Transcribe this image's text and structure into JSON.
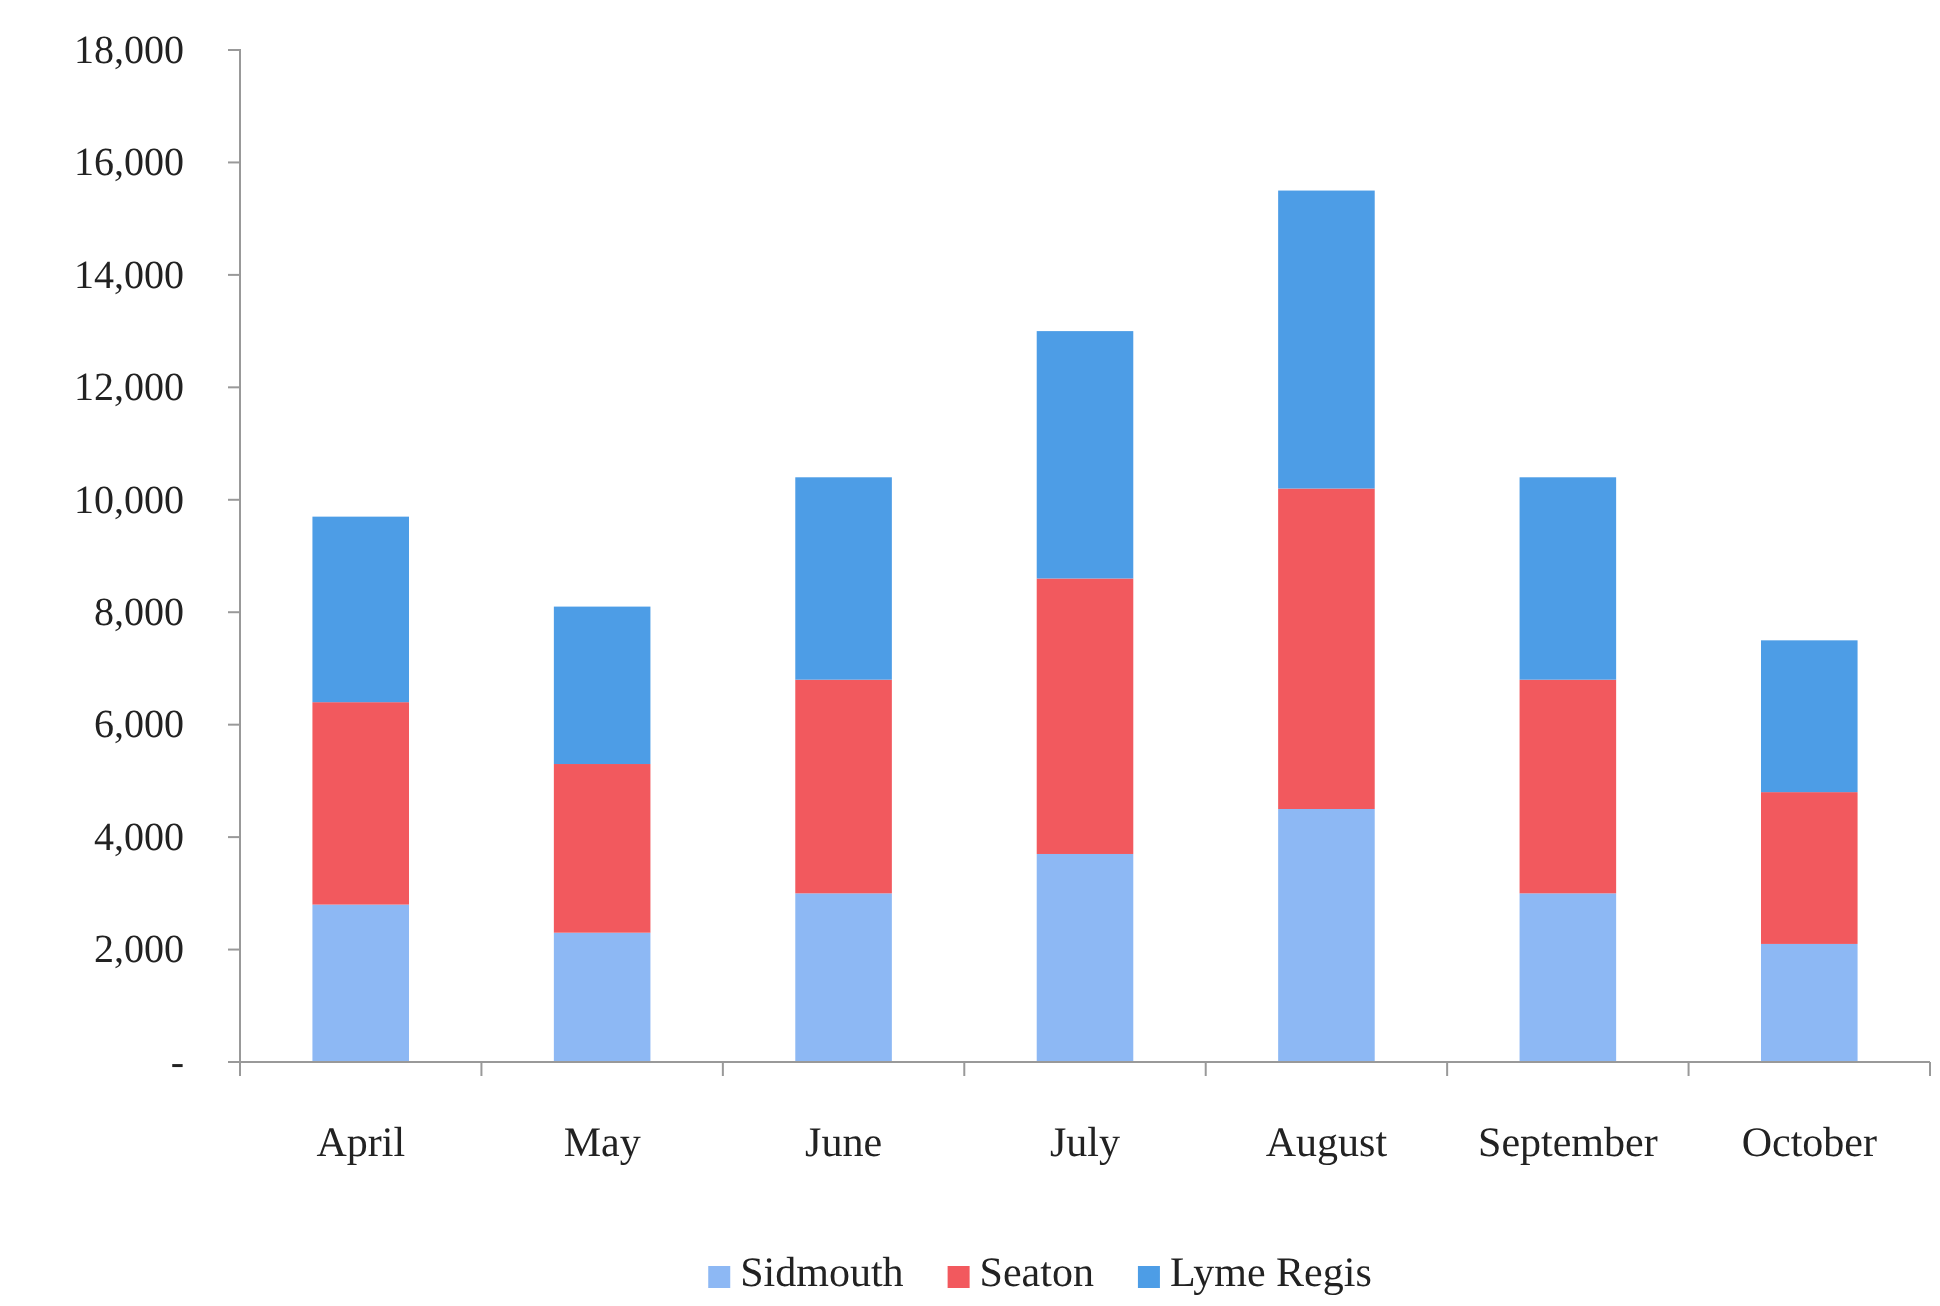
{
  "chart_data": {
    "type": "bar",
    "stacked": true,
    "categories": [
      "April",
      "May",
      "June",
      "July",
      "August",
      "September",
      "October"
    ],
    "series": [
      {
        "name": "Sidmouth",
        "color": "#8db8f4",
        "values": [
          2800,
          2300,
          3000,
          3700,
          4500,
          3000,
          2100
        ]
      },
      {
        "name": "Seaton",
        "color": "#f2595e",
        "values": [
          3600,
          3000,
          3800,
          4900,
          5700,
          3800,
          2700
        ]
      },
      {
        "name": "Lyme Regis",
        "color": "#4d9de6",
        "values": [
          3300,
          2800,
          3600,
          4400,
          5300,
          3600,
          2700
        ]
      }
    ],
    "ylim": [
      0,
      18000
    ],
    "yticks": [
      {
        "value": 0,
        "label": "-"
      },
      {
        "value": 2000,
        "label": "2,000"
      },
      {
        "value": 4000,
        "label": "4,000"
      },
      {
        "value": 6000,
        "label": "6,000"
      },
      {
        "value": 8000,
        "label": "8,000"
      },
      {
        "value": 10000,
        "label": "10,000"
      },
      {
        "value": 12000,
        "label": "12,000"
      },
      {
        "value": 14000,
        "label": "14,000"
      },
      {
        "value": 16000,
        "label": "16,000"
      },
      {
        "value": 18000,
        "label": "18,000"
      }
    ],
    "grid": false,
    "legend": "bottom"
  }
}
